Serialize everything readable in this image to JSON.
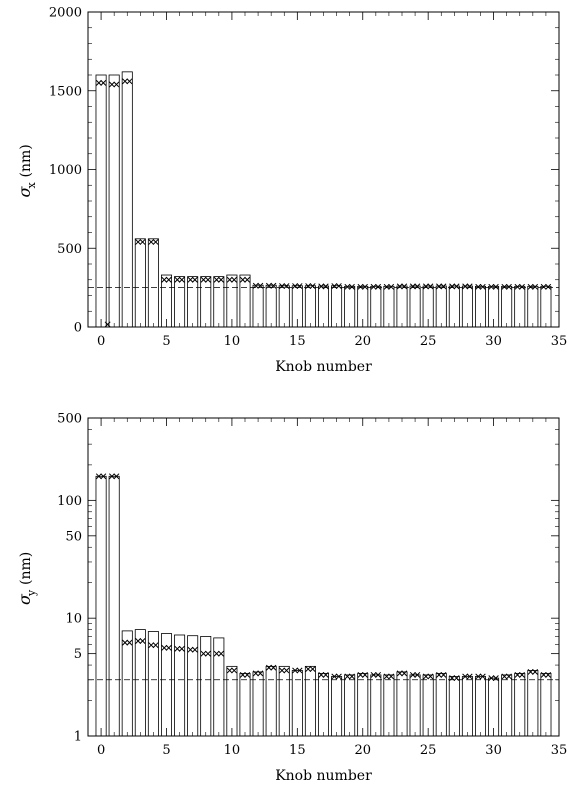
{
  "chart_data": [
    {
      "type": "bar",
      "yscale": "linear",
      "xlabel": "Knob number",
      "ylabel_symbol": "σ",
      "ylabel_subscript": "x",
      "ylabel_unit": "(nm)",
      "xlim": [
        -1,
        35
      ],
      "ylim": [
        0,
        2000
      ],
      "xticks": [
        0,
        5,
        10,
        15,
        20,
        25,
        30,
        35
      ],
      "yticks": [
        0,
        500,
        1000,
        1500,
        2000
      ],
      "x": [
        0,
        1,
        2,
        3,
        4,
        5,
        6,
        7,
        8,
        9,
        10,
        11,
        12,
        13,
        14,
        15,
        16,
        17,
        18,
        19,
        20,
        21,
        22,
        23,
        24,
        25,
        26,
        27,
        28,
        29,
        30,
        31,
        32,
        33,
        34
      ],
      "series": [
        {
          "name": "",
          "kind": "bar",
          "values": [
            1600,
            1600,
            1620,
            560,
            560,
            330,
            320,
            320,
            320,
            320,
            330,
            330,
            265,
            265,
            262,
            262,
            262,
            260,
            262,
            258,
            258,
            258,
            258,
            260,
            260,
            260,
            260,
            260,
            260,
            258,
            258,
            258,
            258,
            258,
            258
          ]
        },
        {
          "name": "",
          "kind": "marker",
          "values": [
            1550,
            1540,
            1560,
            540,
            540,
            300,
            300,
            300,
            300,
            300,
            300,
            300,
            262,
            262,
            260,
            260,
            260,
            258,
            260,
            255,
            255,
            255,
            255,
            258,
            258,
            258,
            258,
            258,
            258,
            255,
            255,
            255,
            255,
            255,
            255
          ]
        }
      ],
      "reference_line": {
        "y": 250,
        "style": "dashed"
      },
      "outlier_marker": {
        "x": 0.5,
        "y": 0
      }
    },
    {
      "type": "bar",
      "yscale": "log",
      "xlabel": "Knob number",
      "ylabel_symbol": "σ",
      "ylabel_subscript": "y",
      "ylabel_unit": "(nm)",
      "xlim": [
        -1,
        35
      ],
      "ylim": [
        1,
        500
      ],
      "xticks": [
        0,
        5,
        10,
        15,
        20,
        25,
        30,
        35
      ],
      "yticks": [
        1,
        5,
        10,
        50,
        100,
        500
      ],
      "x": [
        0,
        1,
        2,
        3,
        4,
        5,
        6,
        7,
        8,
        9,
        10,
        11,
        12,
        13,
        14,
        15,
        16,
        17,
        18,
        19,
        20,
        21,
        22,
        23,
        24,
        25,
        26,
        27,
        28,
        29,
        30,
        31,
        32,
        33,
        34
      ],
      "series": [
        {
          "name": "",
          "kind": "bar",
          "values": [
            160,
            160,
            7.8,
            8.0,
            7.7,
            7.4,
            7.2,
            7.1,
            7.0,
            6.8,
            3.9,
            3.4,
            3.5,
            3.9,
            3.9,
            3.6,
            3.9,
            3.4,
            3.2,
            3.3,
            3.4,
            3.3,
            3.3,
            3.5,
            3.3,
            3.3,
            3.4,
            3.2,
            3.2,
            3.2,
            3.1,
            3.3,
            3.4,
            3.6,
            3.4
          ]
        },
        {
          "name": "",
          "kind": "marker",
          "values": [
            160,
            160,
            6.2,
            6.4,
            5.9,
            5.6,
            5.5,
            5.4,
            5.0,
            5.0,
            3.6,
            3.3,
            3.4,
            3.8,
            3.6,
            3.6,
            3.7,
            3.3,
            3.2,
            3.2,
            3.3,
            3.3,
            3.2,
            3.4,
            3.3,
            3.2,
            3.3,
            3.1,
            3.2,
            3.2,
            3.1,
            3.2,
            3.3,
            3.5,
            3.3
          ]
        }
      ],
      "reference_line": {
        "y": 3.0,
        "style": "dashed"
      }
    }
  ]
}
